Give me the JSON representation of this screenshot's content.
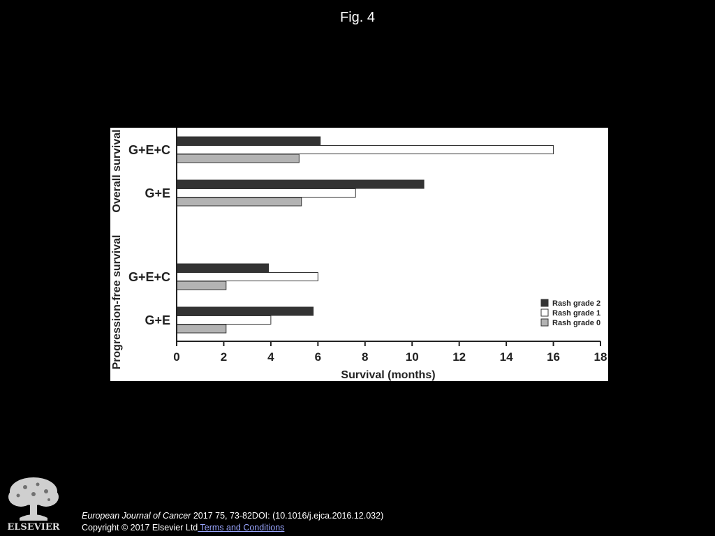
{
  "page": {
    "title": "Fig. 4"
  },
  "chart_data": {
    "type": "bar",
    "orientation": "horizontal",
    "title": "",
    "xlabel": "Survival (months)",
    "xlim": [
      0,
      18
    ],
    "xticks": [
      0,
      2,
      4,
      6,
      8,
      10,
      12,
      14,
      16,
      18
    ],
    "grid": false,
    "legend_position": "bottom-right",
    "sections": [
      {
        "label": "Overall survival",
        "categories": [
          "G+E+C",
          "G+E"
        ]
      },
      {
        "label": "Progression-free survival",
        "categories": [
          "G+E+C",
          "G+E"
        ]
      }
    ],
    "categories": [
      "G+E+C",
      "G+E",
      "G+E+C",
      "G+E"
    ],
    "series": [
      {
        "name": "Rash grade 2",
        "color": "#333333",
        "values": [
          6.1,
          10.5,
          3.9,
          5.8
        ]
      },
      {
        "name": "Rash grade 1",
        "color": "#ffffff",
        "values": [
          16.0,
          7.6,
          6.0,
          4.0
        ]
      },
      {
        "name": "Rash grade 0",
        "color": "#b3b3b3",
        "values": [
          5.2,
          5.3,
          2.1,
          2.1
        ]
      }
    ]
  },
  "footer": {
    "publisher_logo": "ELSEVIER",
    "journal": "European Journal of Cancer",
    "citation_rest": " 2017 75, 73-82DOI: (10.1016/j.ejca.2016.12.032)",
    "copyright": "Copyright © 2017 Elsevier Ltd",
    "terms_link": " Terms and Conditions"
  }
}
